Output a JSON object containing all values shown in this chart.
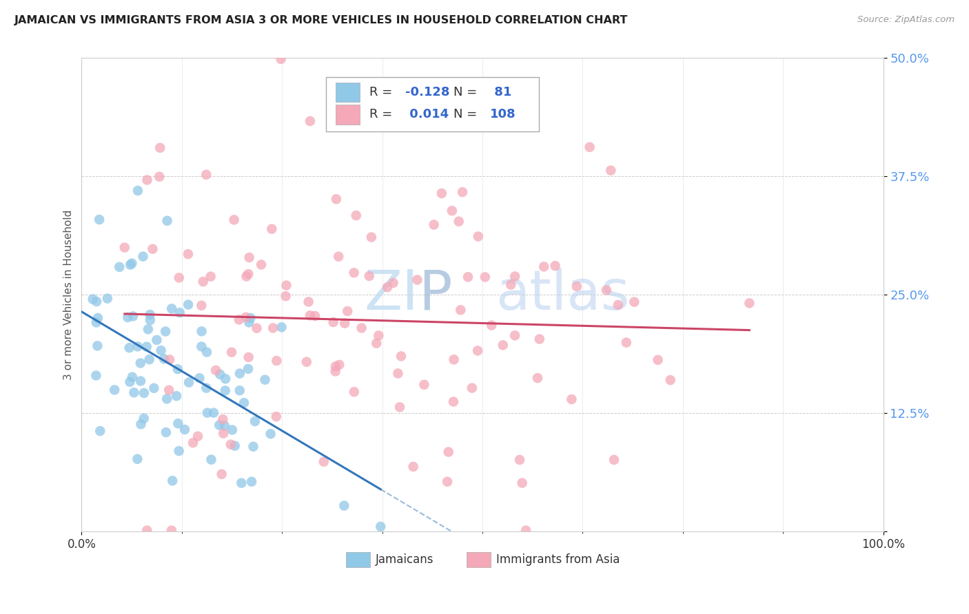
{
  "title": "JAMAICAN VS IMMIGRANTS FROM ASIA 3 OR MORE VEHICLES IN HOUSEHOLD CORRELATION CHART",
  "source": "Source: ZipAtlas.com",
  "ylabel": "3 or more Vehicles in Household",
  "yticks": [
    0.0,
    0.125,
    0.25,
    0.375,
    0.5
  ],
  "ytick_labels": [
    "",
    "12.5%",
    "25.0%",
    "37.5%",
    "50.0%"
  ],
  "series1_name": "Jamaicans",
  "series1_color": "#90c8e8",
  "series1_R": -0.128,
  "series1_N": 81,
  "series2_name": "Immigrants from Asia",
  "series2_color": "#f4a8b8",
  "series2_R": 0.014,
  "series2_N": 108,
  "trend1_color": "#3377bb",
  "trend2_color": "#cc4466",
  "watermark_zi": "ZI",
  "watermark_p": "P",
  "watermark_atlas": "atlas",
  "background_color": "#ffffff",
  "xlim": [
    0.0,
    1.0
  ],
  "ylim": [
    0.0,
    0.5
  ],
  "legend_R1": "R = -0.128",
  "legend_N1": "N =  81",
  "legend_R2": "R =  0.014",
  "legend_N2": "N = 108"
}
